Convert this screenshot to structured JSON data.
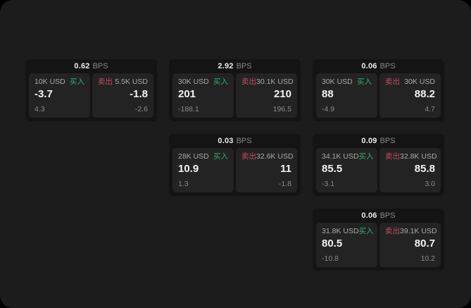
{
  "labels": {
    "buy": "买入",
    "sell": "卖出",
    "bps_unit": "BPS"
  },
  "colors": {
    "buy": "#33ac72",
    "sell": "#c44a64",
    "page_bg": "#1c1c1c",
    "card_bg": "#141414",
    "panel_bg": "#232323"
  },
  "cards": [
    {
      "row": 1,
      "col": 1,
      "bps": "0.62",
      "buy": {
        "amount": "10K USD",
        "value": "-3.7",
        "sub": "4.3"
      },
      "sell": {
        "amount": "5.5K USD",
        "value": "-1.8",
        "sub": "-2.6"
      }
    },
    {
      "row": 1,
      "col": 2,
      "bps": "2.92",
      "buy": {
        "amount": "30K USD",
        "value": "201",
        "sub": "-188.1"
      },
      "sell": {
        "amount": "30.1K USD",
        "value": "210",
        "sub": "196.5"
      }
    },
    {
      "row": 1,
      "col": 3,
      "bps": "0.06",
      "buy": {
        "amount": "30K USD",
        "value": "88",
        "sub": "-4.9"
      },
      "sell": {
        "amount": "30K USD",
        "value": "88.2",
        "sub": "4.7"
      }
    },
    {
      "row": 2,
      "col": 2,
      "bps": "0.03",
      "buy": {
        "amount": "28K USD",
        "value": "10.9",
        "sub": "1.3"
      },
      "sell": {
        "amount": "32.6K USD",
        "value": "11",
        "sub": "-1.8"
      }
    },
    {
      "row": 2,
      "col": 3,
      "bps": "0.09",
      "buy": {
        "amount": "34.1K USD",
        "value": "85.5",
        "sub": "-3.1"
      },
      "sell": {
        "amount": "32.8K USD",
        "value": "85.8",
        "sub": "3.0"
      }
    },
    {
      "row": 3,
      "col": 3,
      "bps": "0.06",
      "buy": {
        "amount": "31.8K USD",
        "value": "80.5",
        "sub": "-10.8"
      },
      "sell": {
        "amount": "39.1K USD",
        "value": "80.7",
        "sub": "10.2"
      }
    }
  ]
}
